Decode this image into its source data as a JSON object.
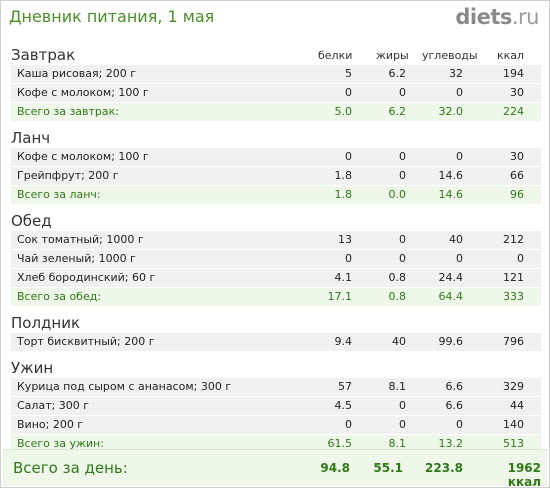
{
  "header": {
    "title": "Дневник питания, 1 мая",
    "brand_main": "diets",
    "brand_tld": ".ru"
  },
  "columns": {
    "protein": "белки",
    "fat": "жиры",
    "carbs": "углеводы",
    "kcal": "ккал"
  },
  "meals": [
    {
      "name": "Завтрак",
      "items": [
        {
          "name": "Каша рисовая; 200 г",
          "protein": "5",
          "fat": "6.2",
          "carbs": "32",
          "kcal": "194"
        },
        {
          "name": "Кофе с молоком; 100 г",
          "protein": "0",
          "fat": "0",
          "carbs": "0",
          "kcal": "30"
        }
      ],
      "total": {
        "name": "Всего за завтрак:",
        "protein": "5.0",
        "fat": "6.2",
        "carbs": "32.0",
        "kcal": "224"
      }
    },
    {
      "name": "Ланч",
      "items": [
        {
          "name": "Кофе с молоком; 100 г",
          "protein": "0",
          "fat": "0",
          "carbs": "0",
          "kcal": "30"
        },
        {
          "name": "Грейпфрут; 200 г",
          "protein": "1.8",
          "fat": "0",
          "carbs": "14.6",
          "kcal": "66"
        }
      ],
      "total": {
        "name": "Всего за ланч:",
        "protein": "1.8",
        "fat": "0.0",
        "carbs": "14.6",
        "kcal": "96"
      }
    },
    {
      "name": "Обед",
      "items": [
        {
          "name": "Сок томатный; 1000 г",
          "protein": "13",
          "fat": "0",
          "carbs": "40",
          "kcal": "212"
        },
        {
          "name": "Чай зеленый; 1000 г",
          "protein": "0",
          "fat": "0",
          "carbs": "0",
          "kcal": "0"
        },
        {
          "name": "Хлеб бородинский; 60 г",
          "protein": "4.1",
          "fat": "0.8",
          "carbs": "24.4",
          "kcal": "121"
        }
      ],
      "total": {
        "name": "Всего за обед:",
        "protein": "17.1",
        "fat": "0.8",
        "carbs": "64.4",
        "kcal": "333"
      }
    },
    {
      "name": "Полдник",
      "items": [
        {
          "name": "Торт бисквитный; 200 г",
          "protein": "9.4",
          "fat": "40",
          "carbs": "99.6",
          "kcal": "796"
        }
      ],
      "total": null
    },
    {
      "name": "Ужин",
      "items": [
        {
          "name": "Курица под сыром с ананасом; 300 г",
          "protein": "57",
          "fat": "8.1",
          "carbs": "6.6",
          "kcal": "329"
        },
        {
          "name": "Салат; 300 г",
          "protein": "4.5",
          "fat": "0",
          "carbs": "6.6",
          "kcal": "44"
        },
        {
          "name": "Вино; 200 г",
          "protein": "0",
          "fat": "0",
          "carbs": "0",
          "kcal": "140"
        }
      ],
      "total": {
        "name": "Всего за ужин:",
        "protein": "61.5",
        "fat": "8.1",
        "carbs": "13.2",
        "kcal": "513"
      }
    }
  ],
  "day_total": {
    "label": "Всего за день:",
    "protein": "94.8",
    "fat": "55.1",
    "carbs": "223.8",
    "kcal": "1962 ккал"
  }
}
